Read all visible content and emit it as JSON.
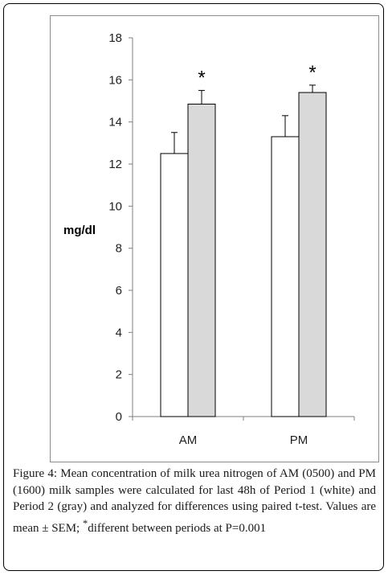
{
  "chart_data": {
    "type": "bar",
    "title": "",
    "xlabel": "",
    "ylabel": "mg/dl",
    "ylim": [
      0,
      18
    ],
    "yticks": [
      0,
      2,
      4,
      6,
      8,
      10,
      12,
      14,
      16,
      18
    ],
    "categories": [
      "AM",
      "PM"
    ],
    "series": [
      {
        "values": [
          12.5,
          13.3
        ],
        "errors": [
          1.0,
          1.0
        ],
        "color": "#ffffff"
      },
      {
        "values": [
          14.85,
          15.4
        ],
        "errors": [
          0.65,
          0.35
        ],
        "color": "#d9d9d9"
      }
    ],
    "annotations": [
      "*",
      "*"
    ],
    "grid": false,
    "legend": "none"
  },
  "caption": {
    "label": "Figure 4:",
    "text_before_sup": " Mean concentration of milk urea nitrogen of AM (0500) and PM (1600) milk samples were calculated for last 48h of Period 1 (white) and Period 2 (gray) and analyzed for differences using paired t-test. Values are mean ± SEM; ",
    "sup": "*",
    "text_after_sup": "different between periods at P=0.001"
  }
}
